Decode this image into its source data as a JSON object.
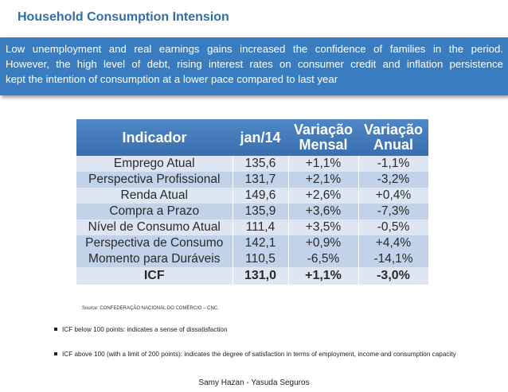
{
  "title": "Household Consumption Intension",
  "banner": {
    "lines": [
      "Low unemployment and real earnings gains increased the confidence of families in the period.",
      "However, the high level of debt, rising interest rates on consumer credit and inflation persistence",
      "kept the intention of consumption at a lower pace compared to last year"
    ]
  },
  "table": {
    "headers": [
      "Indicador",
      "jan/14",
      "Variação Mensal",
      "Variação Anual"
    ],
    "rows": [
      [
        "Emprego Atual",
        "135,6",
        "+1,1%",
        "-1,1%"
      ],
      [
        "Perspectiva Profissional",
        "131,7",
        "+2,1%",
        "-3,2%"
      ],
      [
        "Renda Atual",
        "149,6",
        "+2,6%",
        "+0,4%"
      ],
      [
        "Compra a Prazo",
        "135,9",
        "+3,6%",
        "-7,3%"
      ],
      [
        "Nível de Consumo Atual",
        "111,4",
        "+3,5%",
        "-0,5%"
      ],
      [
        "Perspectiva de Consumo",
        "142,1",
        "+0,9%",
        "+4,4%"
      ],
      [
        "Momento para Duráveis",
        "110,5",
        "-6,5%",
        "-14,1%"
      ],
      [
        "ICF",
        "131,0",
        "+1,1%",
        "-3,0%"
      ]
    ]
  },
  "source": "Source: CONFEDERAÇÃO NACIONAL DO COMÉRCIO – CNC.",
  "bullets": [
    "ICF below 100 points: indicates a sense of dissatisfaction",
    "ICF above 100 (with a limit of 200 points): indicates the degree of satisfaction in terms of employment, income and consumption capacity"
  ],
  "footer": "Samy Hazan -  Yasuda Seguros"
}
